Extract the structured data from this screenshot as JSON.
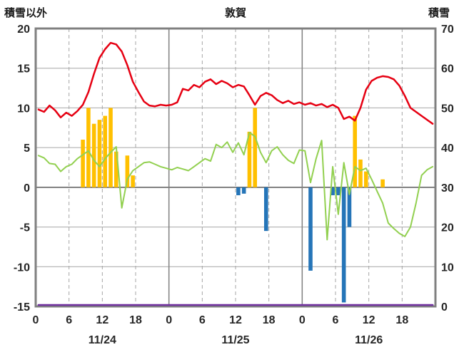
{
  "header": {
    "left_label": "積雪以外",
    "title": "敦賀",
    "right_label": "積雪"
  },
  "colors": {
    "red": "#e60012",
    "green": "#92d050",
    "yellow": "#ffc000",
    "blue": "#2575b8",
    "purple": "#7030a0",
    "grid": "#a6a6a6",
    "frame": "#808080",
    "zero_line": "#595959",
    "text": "#262626"
  },
  "chart_data": {
    "type": "line",
    "title": "敦賀",
    "left_axis": {
      "label": "積雪以外",
      "min": -15,
      "max": 20,
      "ticks": [
        20,
        15,
        10,
        5,
        0,
        -5,
        -10,
        -15
      ]
    },
    "right_axis": {
      "label": "積雪",
      "min": 0,
      "max": 70,
      "ticks": [
        70,
        60,
        50,
        40,
        30,
        20,
        10,
        0
      ]
    },
    "x_axis": {
      "hours_total": 72,
      "tick_hours": [
        0,
        6,
        12,
        18,
        24,
        30,
        36,
        42,
        48,
        54,
        60,
        66
      ],
      "tick_labels": [
        "0",
        "6",
        "12",
        "18",
        "0",
        "6",
        "12",
        "18",
        "0",
        "6",
        "12",
        "18"
      ],
      "day_labels": [
        "11/24",
        "11/25",
        "11/26"
      ],
      "day_label_hours": [
        12,
        36,
        60
      ],
      "day_boundary_hours": [
        24,
        48
      ]
    },
    "series": [
      {
        "name": "yellow-bars",
        "type": "bar",
        "axis": "left",
        "color": "#ffc000",
        "values": [
          null,
          null,
          null,
          null,
          null,
          null,
          null,
          null,
          6,
          10,
          8,
          8.5,
          9,
          10,
          4.5,
          null,
          4,
          1.5,
          null,
          null,
          null,
          null,
          null,
          null,
          null,
          null,
          null,
          null,
          null,
          null,
          null,
          null,
          null,
          null,
          null,
          null,
          null,
          null,
          7,
          10,
          null,
          null,
          null,
          null,
          null,
          null,
          null,
          null,
          null,
          null,
          null,
          null,
          null,
          null,
          null,
          null,
          null,
          9,
          3.5,
          2,
          null,
          null,
          1,
          null,
          null,
          null,
          null,
          null,
          null,
          null,
          null,
          null
        ]
      },
      {
        "name": "blue-bars",
        "type": "bar",
        "axis": "left",
        "color": "#2575b8",
        "values": [
          null,
          null,
          null,
          null,
          null,
          null,
          null,
          null,
          null,
          null,
          null,
          null,
          null,
          null,
          null,
          null,
          null,
          null,
          null,
          null,
          null,
          null,
          null,
          null,
          null,
          null,
          null,
          null,
          null,
          null,
          null,
          null,
          null,
          null,
          null,
          null,
          -1,
          -0.8,
          null,
          null,
          null,
          -5.5,
          null,
          null,
          null,
          null,
          null,
          null,
          null,
          -10.5,
          null,
          null,
          null,
          -1,
          -1,
          -14.5,
          -5,
          null,
          null,
          null,
          null,
          null,
          null,
          null,
          null,
          null,
          null,
          null,
          null,
          null,
          null,
          null
        ]
      },
      {
        "name": "green-line",
        "type": "line",
        "axis": "left",
        "color": "#92d050",
        "width": 2,
        "values": [
          4.0,
          3.7,
          3.0,
          2.9,
          2.0,
          2.6,
          2.9,
          3.6,
          4.1,
          4.6,
          3.4,
          2.6,
          3.6,
          4.4,
          5.1,
          -2.6,
          1.0,
          2.1,
          2.6,
          3.1,
          3.2,
          2.9,
          2.6,
          2.4,
          2.2,
          2.5,
          2.3,
          2.1,
          2.6,
          3.1,
          3.6,
          3.3,
          5.4,
          5.0,
          5.7,
          4.4,
          5.6,
          4.1,
          6.9,
          6.4,
          4.4,
          3.1,
          4.6,
          5.1,
          4.1,
          3.4,
          3.0,
          4.7,
          4.6,
          0.6,
          3.6,
          5.9,
          -6.6,
          2.6,
          -3.4,
          3.1,
          -0.9,
          2.6,
          2.1,
          2.4,
          1.0,
          -0.5,
          -2.0,
          -4.5,
          -5.2,
          -5.8,
          -6.2,
          -5.0,
          -2.0,
          1.5,
          2.2,
          2.6
        ]
      },
      {
        "name": "red-line",
        "type": "line",
        "axis": "left",
        "color": "#e60012",
        "width": 2.5,
        "values": [
          9.8,
          9.5,
          10.3,
          9.7,
          8.8,
          9.4,
          9.0,
          9.6,
          10.4,
          12.0,
          14.3,
          16.3,
          17.4,
          18.2,
          18.0,
          17.1,
          15.4,
          13.3,
          12.0,
          10.8,
          10.3,
          10.2,
          10.4,
          10.3,
          10.4,
          10.7,
          12.4,
          12.2,
          12.9,
          12.6,
          13.3,
          13.6,
          13.0,
          13.4,
          13.1,
          12.6,
          12.9,
          12.7,
          11.6,
          10.4,
          11.5,
          11.9,
          11.6,
          11.0,
          10.6,
          10.9,
          10.5,
          10.7,
          10.4,
          10.6,
          10.3,
          10.5,
          10.1,
          10.4,
          10.0,
          8.6,
          8.9,
          8.4,
          10.0,
          12.3,
          13.4,
          13.8,
          14.0,
          13.9,
          13.6,
          12.8,
          11.5,
          10.0,
          9.5,
          9.0,
          8.5,
          8.0
        ]
      },
      {
        "name": "purple-snow-line",
        "type": "line",
        "axis": "right",
        "color": "#7030a0",
        "width": 2.5,
        "values": [
          0,
          0,
          0,
          0,
          0,
          0,
          0,
          0,
          0,
          0,
          0,
          0,
          0,
          0,
          0,
          0,
          0,
          0,
          0,
          0,
          0,
          0,
          0,
          0,
          0,
          0,
          0,
          0,
          0,
          0,
          0,
          0,
          0,
          0,
          0,
          0,
          0,
          0,
          0,
          0,
          0,
          0,
          0,
          0,
          0,
          0,
          0,
          0,
          0,
          0,
          0,
          0,
          0,
          0,
          0,
          0,
          0,
          0,
          0,
          0,
          0,
          0,
          0,
          0,
          0,
          0,
          0,
          0,
          0,
          0,
          0,
          0
        ]
      }
    ]
  }
}
